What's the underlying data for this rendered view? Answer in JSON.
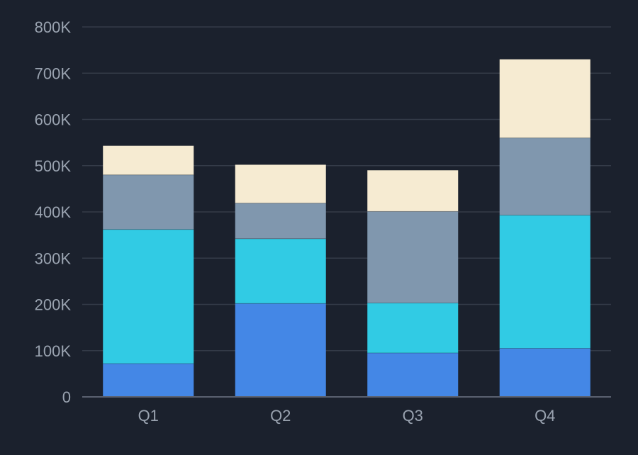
{
  "chart_data": {
    "type": "bar",
    "stacked": true,
    "categories": [
      "Q1",
      "Q2",
      "Q3",
      "Q4"
    ],
    "series": [
      {
        "values": [
          72000,
          202000,
          95000,
          105000
        ],
        "color": "#4487e6"
      },
      {
        "values": [
          290000,
          140000,
          108000,
          288000
        ],
        "color": "#31cbe4"
      },
      {
        "values": [
          118000,
          77000,
          198000,
          167000
        ],
        "color": "#8097ae"
      },
      {
        "values": [
          63000,
          83000,
          89000,
          170000
        ],
        "color": "#f6ebd2"
      }
    ],
    "ylim": [
      0,
      800000
    ],
    "yticks": [
      0,
      100000,
      200000,
      300000,
      400000,
      500000,
      600000,
      700000,
      800000
    ],
    "ytick_labels": [
      "0",
      "100K",
      "200K",
      "300K",
      "400K",
      "500K",
      "600K",
      "700K",
      "800K"
    ],
    "grid": true,
    "legend": "none"
  }
}
